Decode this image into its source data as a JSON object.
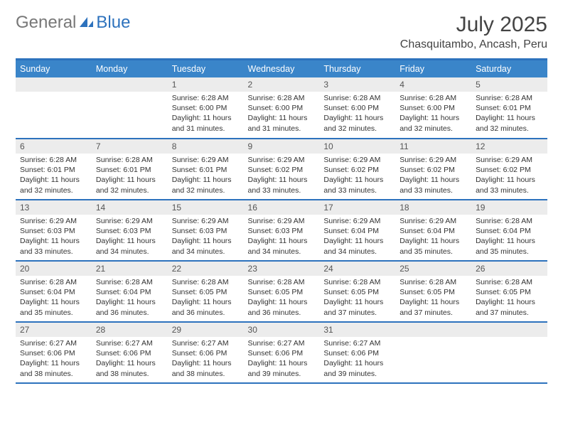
{
  "logo": {
    "text1": "General",
    "text2": "Blue"
  },
  "title": "July 2025",
  "location": "Chasquitambo, Ancash, Peru",
  "colors": {
    "header_bg": "#3a85c9",
    "divider": "#2d72bd",
    "daynum_bg": "#ececec",
    "text": "#333333",
    "title_color": "#444444"
  },
  "type": "calendar-table",
  "days_of_week": [
    "Sunday",
    "Monday",
    "Tuesday",
    "Wednesday",
    "Thursday",
    "Friday",
    "Saturday"
  ],
  "first_weekday_index": 2,
  "num_days": 31,
  "cell_fontsize_pt": 8,
  "daynum_fontsize_pt": 9,
  "header_fontsize_pt": 9.5,
  "title_fontsize_pt": 22,
  "location_fontsize_pt": 12,
  "cells": {
    "1": {
      "sunrise": "6:28 AM",
      "sunset": "6:00 PM",
      "daylight": "11 hours and 31 minutes."
    },
    "2": {
      "sunrise": "6:28 AM",
      "sunset": "6:00 PM",
      "daylight": "11 hours and 31 minutes."
    },
    "3": {
      "sunrise": "6:28 AM",
      "sunset": "6:00 PM",
      "daylight": "11 hours and 32 minutes."
    },
    "4": {
      "sunrise": "6:28 AM",
      "sunset": "6:00 PM",
      "daylight": "11 hours and 32 minutes."
    },
    "5": {
      "sunrise": "6:28 AM",
      "sunset": "6:01 PM",
      "daylight": "11 hours and 32 minutes."
    },
    "6": {
      "sunrise": "6:28 AM",
      "sunset": "6:01 PM",
      "daylight": "11 hours and 32 minutes."
    },
    "7": {
      "sunrise": "6:28 AM",
      "sunset": "6:01 PM",
      "daylight": "11 hours and 32 minutes."
    },
    "8": {
      "sunrise": "6:29 AM",
      "sunset": "6:01 PM",
      "daylight": "11 hours and 32 minutes."
    },
    "9": {
      "sunrise": "6:29 AM",
      "sunset": "6:02 PM",
      "daylight": "11 hours and 33 minutes."
    },
    "10": {
      "sunrise": "6:29 AM",
      "sunset": "6:02 PM",
      "daylight": "11 hours and 33 minutes."
    },
    "11": {
      "sunrise": "6:29 AM",
      "sunset": "6:02 PM",
      "daylight": "11 hours and 33 minutes."
    },
    "12": {
      "sunrise": "6:29 AM",
      "sunset": "6:02 PM",
      "daylight": "11 hours and 33 minutes."
    },
    "13": {
      "sunrise": "6:29 AM",
      "sunset": "6:03 PM",
      "daylight": "11 hours and 33 minutes."
    },
    "14": {
      "sunrise": "6:29 AM",
      "sunset": "6:03 PM",
      "daylight": "11 hours and 34 minutes."
    },
    "15": {
      "sunrise": "6:29 AM",
      "sunset": "6:03 PM",
      "daylight": "11 hours and 34 minutes."
    },
    "16": {
      "sunrise": "6:29 AM",
      "sunset": "6:03 PM",
      "daylight": "11 hours and 34 minutes."
    },
    "17": {
      "sunrise": "6:29 AM",
      "sunset": "6:04 PM",
      "daylight": "11 hours and 34 minutes."
    },
    "18": {
      "sunrise": "6:29 AM",
      "sunset": "6:04 PM",
      "daylight": "11 hours and 35 minutes."
    },
    "19": {
      "sunrise": "6:28 AM",
      "sunset": "6:04 PM",
      "daylight": "11 hours and 35 minutes."
    },
    "20": {
      "sunrise": "6:28 AM",
      "sunset": "6:04 PM",
      "daylight": "11 hours and 35 minutes."
    },
    "21": {
      "sunrise": "6:28 AM",
      "sunset": "6:04 PM",
      "daylight": "11 hours and 36 minutes."
    },
    "22": {
      "sunrise": "6:28 AM",
      "sunset": "6:05 PM",
      "daylight": "11 hours and 36 minutes."
    },
    "23": {
      "sunrise": "6:28 AM",
      "sunset": "6:05 PM",
      "daylight": "11 hours and 36 minutes."
    },
    "24": {
      "sunrise": "6:28 AM",
      "sunset": "6:05 PM",
      "daylight": "11 hours and 37 minutes."
    },
    "25": {
      "sunrise": "6:28 AM",
      "sunset": "6:05 PM",
      "daylight": "11 hours and 37 minutes."
    },
    "26": {
      "sunrise": "6:28 AM",
      "sunset": "6:05 PM",
      "daylight": "11 hours and 37 minutes."
    },
    "27": {
      "sunrise": "6:27 AM",
      "sunset": "6:06 PM",
      "daylight": "11 hours and 38 minutes."
    },
    "28": {
      "sunrise": "6:27 AM",
      "sunset": "6:06 PM",
      "daylight": "11 hours and 38 minutes."
    },
    "29": {
      "sunrise": "6:27 AM",
      "sunset": "6:06 PM",
      "daylight": "11 hours and 38 minutes."
    },
    "30": {
      "sunrise": "6:27 AM",
      "sunset": "6:06 PM",
      "daylight": "11 hours and 39 minutes."
    },
    "31": {
      "sunrise": "6:27 AM",
      "sunset": "6:06 PM",
      "daylight": "11 hours and 39 minutes."
    }
  },
  "labels": {
    "sunrise": "Sunrise:",
    "sunset": "Sunset:",
    "daylight": "Daylight:"
  }
}
